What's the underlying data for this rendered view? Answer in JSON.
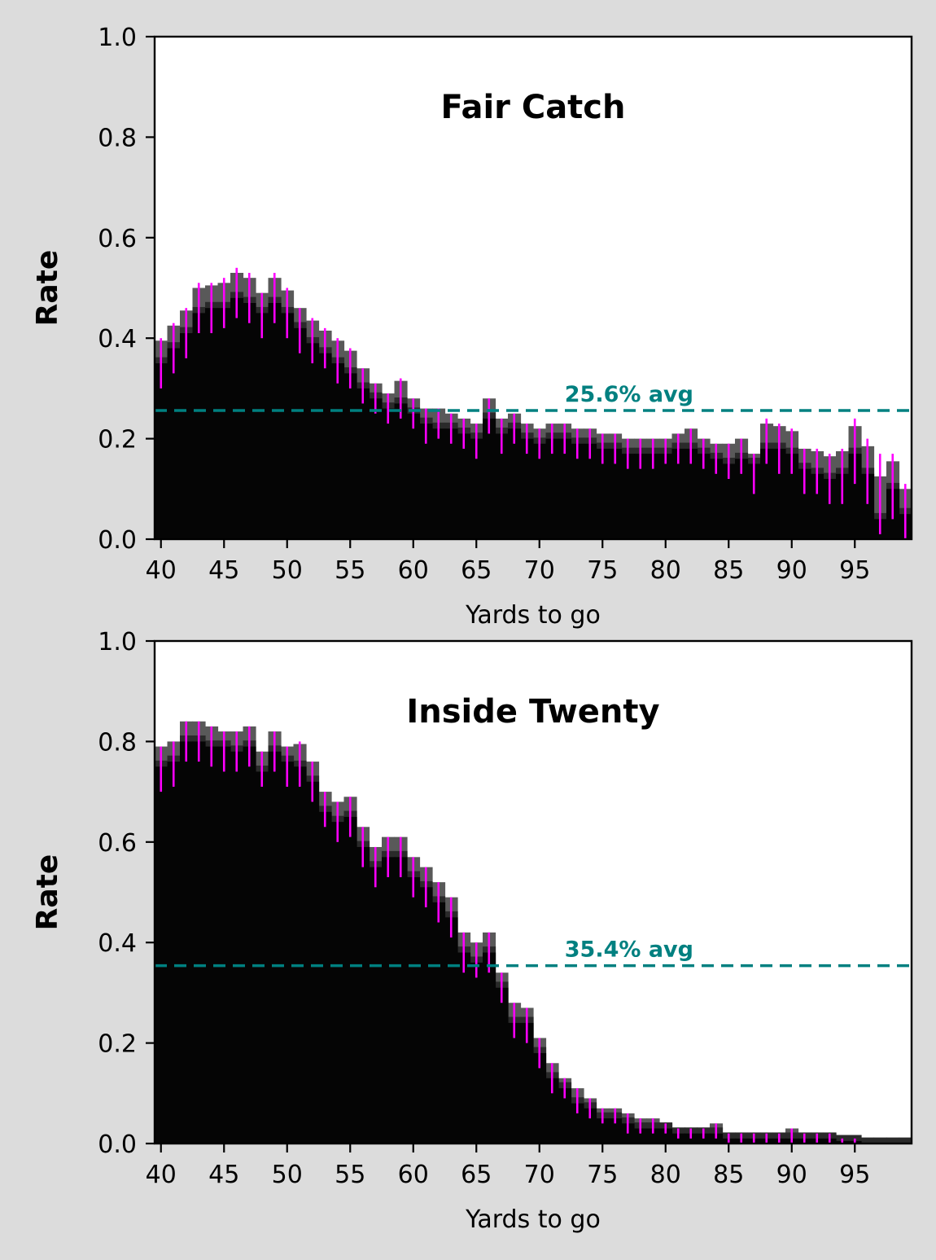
{
  "chart_data": [
    {
      "type": "bar",
      "title": "Fair Catch",
      "xlabel": "Yards to go",
      "ylabel": "Rate",
      "xlim": [
        39.5,
        99.5
      ],
      "ylim": [
        0,
        1
      ],
      "x_ticks": [
        "40",
        "45",
        "50",
        "55",
        "60",
        "65",
        "70",
        "75",
        "80",
        "85",
        "90",
        "95"
      ],
      "y_ticks": [
        "0.0",
        "0.2",
        "0.4",
        "0.6",
        "0.8",
        "1.0"
      ],
      "average": 0.256,
      "average_label": "25.6% avg",
      "x": [
        40,
        41,
        42,
        43,
        44,
        45,
        46,
        47,
        48,
        49,
        50,
        51,
        52,
        53,
        54,
        55,
        56,
        57,
        58,
        59,
        60,
        61,
        62,
        63,
        64,
        65,
        66,
        67,
        68,
        69,
        70,
        71,
        72,
        73,
        74,
        75,
        76,
        77,
        78,
        79,
        80,
        81,
        82,
        83,
        84,
        85,
        86,
        87,
        88,
        89,
        90,
        91,
        92,
        93,
        94,
        95,
        96,
        97,
        98,
        99
      ],
      "values": [
        0.35,
        0.38,
        0.41,
        0.45,
        0.46,
        0.46,
        0.48,
        0.47,
        0.45,
        0.47,
        0.45,
        0.42,
        0.39,
        0.37,
        0.35,
        0.33,
        0.3,
        0.28,
        0.26,
        0.27,
        0.25,
        0.23,
        0.22,
        0.22,
        0.21,
        0.2,
        0.24,
        0.21,
        0.22,
        0.2,
        0.19,
        0.2,
        0.2,
        0.19,
        0.19,
        0.18,
        0.18,
        0.17,
        0.17,
        0.17,
        0.17,
        0.18,
        0.18,
        0.17,
        0.16,
        0.15,
        0.16,
        0.15,
        0.18,
        0.18,
        0.17,
        0.14,
        0.13,
        0.12,
        0.13,
        0.17,
        0.13,
        0.04,
        0.1,
        0.05
      ],
      "err_low": [
        0.3,
        0.33,
        0.36,
        0.41,
        0.41,
        0.42,
        0.44,
        0.43,
        0.4,
        0.43,
        0.4,
        0.37,
        0.35,
        0.34,
        0.31,
        0.3,
        0.27,
        0.25,
        0.23,
        0.24,
        0.22,
        0.19,
        0.2,
        0.19,
        0.18,
        0.16,
        0.21,
        0.17,
        0.19,
        0.17,
        0.16,
        0.17,
        0.17,
        0.16,
        0.16,
        0.15,
        0.15,
        0.14,
        0.14,
        0.14,
        0.15,
        0.15,
        0.15,
        0.14,
        0.13,
        0.12,
        0.13,
        0.09,
        0.15,
        0.13,
        0.13,
        0.09,
        0.09,
        0.07,
        0.07,
        0.11,
        0.07,
        0.01,
        0.04,
        0.0
      ],
      "err_high": [
        0.4,
        0.43,
        0.46,
        0.51,
        0.51,
        0.52,
        0.54,
        0.53,
        0.49,
        0.53,
        0.5,
        0.46,
        0.44,
        0.42,
        0.4,
        0.38,
        0.34,
        0.31,
        0.29,
        0.32,
        0.28,
        0.26,
        0.26,
        0.25,
        0.24,
        0.23,
        0.28,
        0.24,
        0.25,
        0.23,
        0.22,
        0.23,
        0.23,
        0.22,
        0.22,
        0.21,
        0.21,
        0.2,
        0.2,
        0.2,
        0.2,
        0.21,
        0.22,
        0.2,
        0.19,
        0.19,
        0.2,
        0.17,
        0.24,
        0.23,
        0.22,
        0.18,
        0.18,
        0.17,
        0.18,
        0.24,
        0.2,
        0.17,
        0.17,
        0.11
      ]
    },
    {
      "type": "bar",
      "title": "Inside Twenty",
      "xlabel": "Yards to go",
      "ylabel": "Rate",
      "xlim": [
        39.5,
        99.5
      ],
      "ylim": [
        0,
        1
      ],
      "x_ticks": [
        "40",
        "45",
        "50",
        "55",
        "60",
        "65",
        "70",
        "75",
        "80",
        "85",
        "90",
        "95"
      ],
      "y_ticks": [
        "0.0",
        "0.2",
        "0.4",
        "0.6",
        "0.8",
        "1.0"
      ],
      "average": 0.354,
      "average_label": "35.4% avg",
      "x": [
        40,
        41,
        42,
        43,
        44,
        45,
        46,
        47,
        48,
        49,
        50,
        51,
        52,
        53,
        54,
        55,
        56,
        57,
        58,
        59,
        60,
        61,
        62,
        63,
        64,
        65,
        66,
        67,
        68,
        69,
        70,
        71,
        72,
        73,
        74,
        75,
        76,
        77,
        78,
        79,
        80,
        81,
        82,
        83,
        84,
        85,
        86,
        87,
        88,
        89,
        90,
        91,
        92,
        93,
        94,
        95,
        96,
        97,
        98,
        99
      ],
      "values": [
        0.75,
        0.76,
        0.8,
        0.8,
        0.79,
        0.79,
        0.78,
        0.79,
        0.74,
        0.78,
        0.76,
        0.75,
        0.72,
        0.66,
        0.64,
        0.65,
        0.59,
        0.55,
        0.57,
        0.57,
        0.53,
        0.51,
        0.48,
        0.45,
        0.38,
        0.36,
        0.38,
        0.31,
        0.24,
        0.24,
        0.18,
        0.13,
        0.11,
        0.08,
        0.07,
        0.05,
        0.05,
        0.04,
        0.03,
        0.03,
        0.03,
        0.02,
        0.02,
        0.02,
        0.02,
        0.01,
        0.01,
        0.01,
        0.01,
        0.01,
        0.01,
        0.01,
        0.01,
        0.01,
        0.005,
        0.005,
        0,
        0,
        0,
        0
      ],
      "err_low": [
        0.7,
        0.71,
        0.76,
        0.76,
        0.75,
        0.74,
        0.74,
        0.75,
        0.71,
        0.74,
        0.71,
        0.71,
        0.68,
        0.63,
        0.6,
        0.61,
        0.55,
        0.51,
        0.53,
        0.53,
        0.49,
        0.47,
        0.44,
        0.41,
        0.34,
        0.33,
        0.34,
        0.28,
        0.21,
        0.2,
        0.15,
        0.1,
        0.09,
        0.06,
        0.05,
        0.04,
        0.04,
        0.02,
        0.02,
        0.02,
        0.02,
        0.01,
        0.01,
        0.01,
        0.01,
        0.0,
        0.0,
        0.0,
        0.0,
        0.0,
        0.0,
        0.0,
        0.0,
        0.0,
        0.0,
        0.0,
        0.0,
        0.0,
        0.0,
        0.0
      ],
      "err_high": [
        0.79,
        0.8,
        0.84,
        0.84,
        0.83,
        0.82,
        0.82,
        0.83,
        0.78,
        0.82,
        0.79,
        0.8,
        0.76,
        0.7,
        0.68,
        0.69,
        0.63,
        0.59,
        0.61,
        0.61,
        0.57,
        0.55,
        0.52,
        0.49,
        0.42,
        0.4,
        0.42,
        0.34,
        0.28,
        0.27,
        0.21,
        0.16,
        0.13,
        0.11,
        0.09,
        0.07,
        0.07,
        0.06,
        0.05,
        0.05,
        0.04,
        0.03,
        0.03,
        0.03,
        0.04,
        0.02,
        0.02,
        0.02,
        0.02,
        0.02,
        0.03,
        0.02,
        0.02,
        0.02,
        0.01,
        0.01,
        0.0,
        0.0,
        0.0,
        0.0
      ]
    }
  ],
  "colors": {
    "background": "#dcdcdc",
    "plot_area": "#ffffff",
    "bars": "#050505",
    "shadow": "#595959",
    "error_bars": "#ff00ff",
    "average_line": "#008080"
  }
}
